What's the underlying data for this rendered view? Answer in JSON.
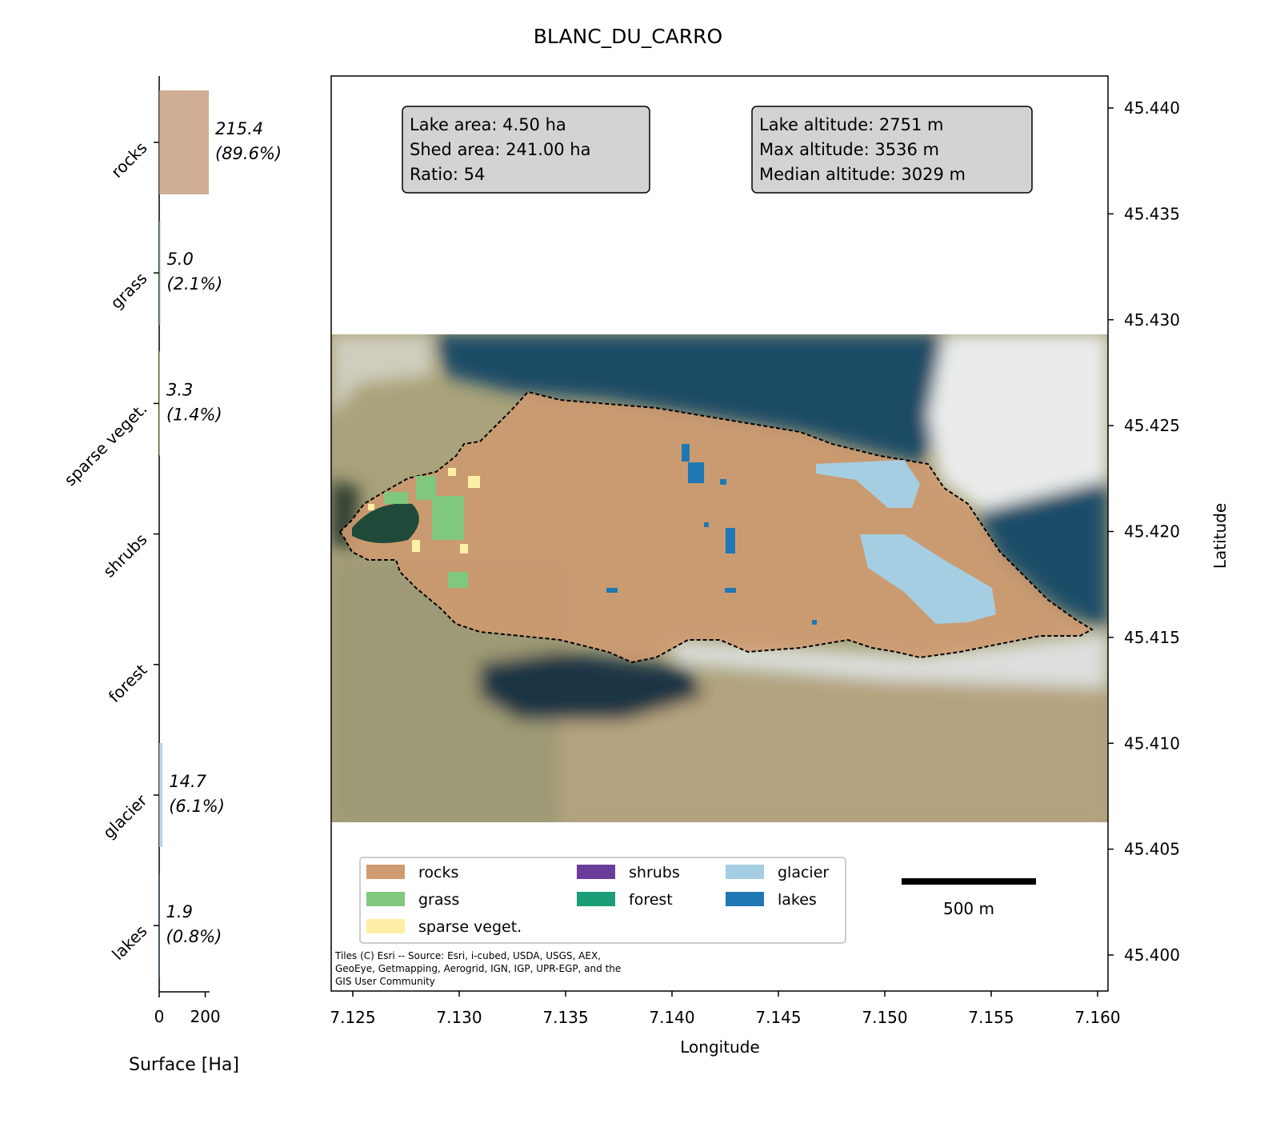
{
  "title": "BLANC_DU_CARRO",
  "chart_data": [
    {
      "type": "bar",
      "orientation": "horizontal",
      "categories": [
        "rocks",
        "grass",
        "sparse veget.",
        "shrubs",
        "forest",
        "glacier",
        "lakes"
      ],
      "values": [
        215.4,
        5.0,
        3.3,
        0,
        0,
        14.7,
        1.9
      ],
      "value_labels": [
        "215.4",
        "5.0",
        "3.3",
        "",
        "",
        "14.7",
        "1.9"
      ],
      "percent_labels": [
        "(89.6%)",
        "(2.1%)",
        "(1.4%)",
        "",
        "",
        "(6.1%)",
        "(0.8%)"
      ],
      "colors": [
        "#c49a7b",
        "#80c87e",
        "#fdf0a6",
        "#6a3d9a",
        "#1b9e77",
        "#a6cee3",
        "#1f78b4"
      ],
      "xlabel": "Surface [Ha]",
      "xticks": [
        "0",
        "200"
      ],
      "xlim": [
        0,
        215.4
      ]
    },
    {
      "type": "map",
      "xlabel": "Longitude",
      "ylabel": "Latitude",
      "xticks": [
        "7.125",
        "7.130",
        "7.135",
        "7.140",
        "7.145",
        "7.150",
        "7.155",
        "7.160"
      ],
      "yticks": [
        "45.440",
        "45.435",
        "45.430",
        "45.425",
        "45.420",
        "45.415",
        "45.410",
        "45.405",
        "45.400"
      ],
      "xlim": [
        7.124,
        7.1605
      ],
      "ylim": [
        45.3982,
        45.4415
      ],
      "info_left": [
        "Lake area: 4.50 ha",
        "Shed area: 241.00 ha",
        "Ratio: 54"
      ],
      "info_right": [
        "Lake altitude: 2751 m",
        "Max altitude: 3536 m",
        "Median altitude: 3029 m"
      ],
      "legend": [
        {
          "label": "rocks",
          "color": "#d09a70"
        },
        {
          "label": "grass",
          "color": "#80c87e"
        },
        {
          "label": "sparse veget.",
          "color": "#fdf0a6"
        },
        {
          "label": "shrubs",
          "color": "#6a3d9a"
        },
        {
          "label": "forest",
          "color": "#1b9e77"
        },
        {
          "label": "glacier",
          "color": "#a6cee3"
        },
        {
          "label": "lakes",
          "color": "#1f78b4"
        }
      ],
      "scalebar": "500 m",
      "attribution": [
        "Tiles (C) Esri -- Source: Esri, i-cubed, USDA, USGS, AEX,",
        "GeoEye, Getmapping, Aerogrid, IGN, IGP, UPR-EGP, and the",
        "GIS User Community"
      ]
    }
  ]
}
